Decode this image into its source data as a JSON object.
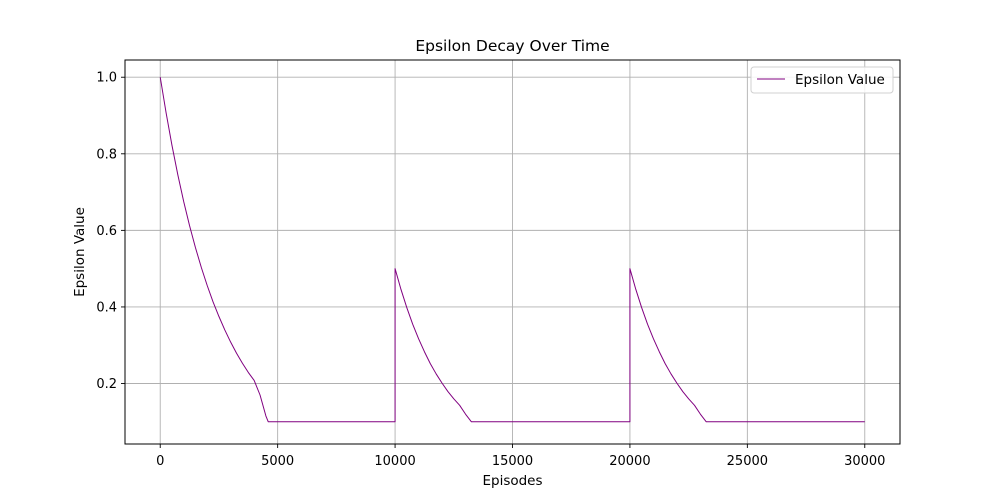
{
  "chart_data": {
    "type": "line",
    "title": "Epsilon Decay Over Time",
    "xlabel": "Episodes",
    "ylabel": "Epsilon Value",
    "xlim": [
      -1500,
      31500
    ],
    "ylim": [
      0.042,
      1.045
    ],
    "xticks": [
      0,
      5000,
      10000,
      15000,
      20000,
      25000,
      30000
    ],
    "xtick_labels": [
      "0",
      "5000",
      "10000",
      "15000",
      "20000",
      "25000",
      "30000"
    ],
    "yticks": [
      0.2,
      0.4,
      0.6,
      0.8,
      1.0
    ],
    "ytick_labels": [
      "0.2",
      "0.4",
      "0.6",
      "0.8",
      "1.0"
    ],
    "grid": true,
    "legend_position": "top-right",
    "series": [
      {
        "name": "Epsilon Value",
        "color": "#800080",
        "x": [
          0,
          250,
          500,
          750,
          1000,
          1250,
          1500,
          1750,
          2000,
          2250,
          2500,
          2750,
          3000,
          3250,
          3500,
          3750,
          4000,
          4250,
          4500,
          4600,
          10000,
          10000,
          10250,
          10500,
          10750,
          11000,
          11250,
          11500,
          11750,
          12000,
          12250,
          12500,
          12750,
          13000,
          13250,
          20000,
          20000,
          20250,
          20500,
          20750,
          21000,
          21250,
          21500,
          21750,
          22000,
          22250,
          22500,
          22750,
          23000,
          23250,
          30000
        ],
        "y": [
          1.0,
          0.907,
          0.822,
          0.745,
          0.675,
          0.612,
          0.555,
          0.503,
          0.456,
          0.413,
          0.375,
          0.34,
          0.308,
          0.279,
          0.253,
          0.229,
          0.208,
          0.17,
          0.115,
          0.1,
          0.1,
          0.5,
          0.446,
          0.398,
          0.355,
          0.317,
          0.283,
          0.252,
          0.225,
          0.201,
          0.179,
          0.16,
          0.143,
          0.12,
          0.1,
          0.1,
          0.5,
          0.446,
          0.398,
          0.355,
          0.317,
          0.283,
          0.252,
          0.225,
          0.201,
          0.179,
          0.16,
          0.143,
          0.12,
          0.1,
          0.1
        ]
      }
    ]
  }
}
